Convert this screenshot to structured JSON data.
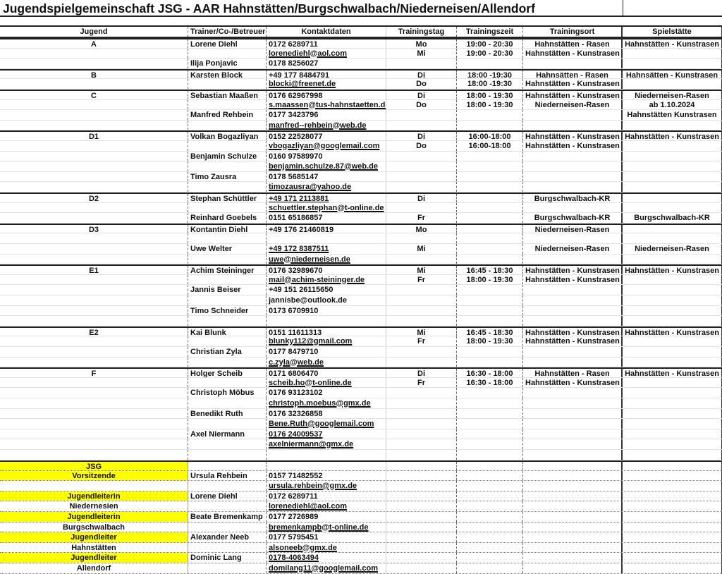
{
  "title": "Jugendspielgemeinschaft JSG - AAR Hahnstätten/Burgschwalbach/Niederneisen/Allendorf",
  "colors": {
    "highlight": "#ffff00",
    "grid": "#222222"
  },
  "columns": [
    "Jugend",
    "Trainer/Co-/Betreuer",
    "Kontaktdaten",
    "Trainingstag",
    "Trainingszeit",
    "Trainingsort",
    "Spielstätte"
  ],
  "teams": [
    {
      "jugend": "A",
      "rows": [
        {
          "trainer": "Lorene Diehl",
          "kontakt": "0172 6289711",
          "tag": "Mo",
          "zeit": "19:00 - 20:30",
          "ort": "Hahnstätten - Rasen",
          "spiel": "Hahnstätten - Kunstrasen"
        },
        {
          "trainer": "",
          "kontakt": "lorenediehl@aol.com",
          "link": true,
          "tag": "Mi",
          "zeit": "19:00 - 20:30",
          "ort": "Hahnstätten - Kunstrasen",
          "spiel": ""
        },
        {
          "trainer": "Ilija Ponjavic",
          "kontakt": "0178 8256027"
        }
      ]
    },
    {
      "jugend": "B",
      "rows": [
        {
          "trainer": "Karsten Block",
          "kontakt": "+49 177 8484791",
          "tag": "Di",
          "zeit": "18:00 -19:30",
          "ort": "Hahnsätten - Rasen",
          "spiel": "Hahnsätten - Kunstrasen"
        },
        {
          "trainer": "",
          "kontakt": "blocki@freenet.de",
          "link": true,
          "tag": "Do",
          "zeit": "18:00 -19:30",
          "ort": "Hahnstätten - Kunstrasen"
        }
      ]
    },
    {
      "jugend": "C",
      "rows": [
        {
          "trainer": "Sebastian Maaßen",
          "kontakt": "0176 62967998",
          "tag": "Di",
          "zeit": "18:00 - 19:30",
          "ort": "Hahnstätten - Kunstrasen",
          "spiel": "Niederneisen-Rasen"
        },
        {
          "trainer": "",
          "kontakt": "s.maassen@tus-hahnstaetten.de",
          "link": true,
          "tag": "Do",
          "zeit": "18:00 - 19:30",
          "ort": "Niederneisen-Rasen",
          "spiel": "ab 1.10.2024"
        },
        {
          "trainer": "Manfred Rehbein",
          "kontakt": "0177 3423796",
          "spiel": "Hahnstätten Kunstrasen"
        },
        {
          "trainer": "",
          "kontakt": "manfred--rehbein@web.de",
          "link": true
        }
      ]
    },
    {
      "jugend": "D1",
      "rows": [
        {
          "trainer": "Volkan Bogazliyan",
          "kontakt": "0152 22528077",
          "tag": "Di",
          "zeit": "16:00-18:00",
          "ort": "Hahnstätten - Kunstrasen",
          "spiel": "Hahnstätten - Kunstrasen"
        },
        {
          "trainer": "",
          "kontakt": "vbogazliyan@googlemail.com",
          "link": true,
          "tag": "Do",
          "zeit": "16:00-18:00",
          "ort": "Hahnstätten - Kunstrasen"
        },
        {
          "trainer": "Benjamin Schulze",
          "kontakt": "0160 97589970"
        },
        {
          "trainer": "",
          "kontakt": "benjamin.schulze.87@web.de",
          "link": true
        },
        {
          "trainer": "Timo Zausra",
          "kontakt": "0178 5685147"
        },
        {
          "trainer": "",
          "kontakt": "timozausra@yahoo.de",
          "link": true
        }
      ]
    },
    {
      "jugend": "D2",
      "rows": [
        {
          "trainer": "Stephan Schüttler",
          "kontakt": "+49 171 2113881",
          "link": true,
          "tag": "Di",
          "ort": "Burgschwalbach-KR"
        },
        {
          "trainer": "",
          "kontakt": "schuettler.stephan@t-online.de",
          "link": true
        },
        {
          "trainer": "Reinhard Goebels",
          "kontakt": "0151 65186857",
          "tag": "Fr",
          "ort": "Burgschwalbach-KR",
          "spiel": "Burgschwalbach-KR"
        }
      ]
    },
    {
      "jugend": "D3",
      "rows": [
        {
          "trainer": "Kontantin Diehl",
          "kontakt": "+49 176 21460819",
          "link": true,
          "tag": "Mo",
          "ort": "Niederneisen-Rasen"
        },
        {},
        {
          "trainer": "Uwe Welter",
          "kontakt": "+49 172 8387511",
          "link": true,
          "tag": "Mi",
          "ort": "Niederneisen-Rasen",
          "spiel": "Niederneisen-Rasen"
        },
        {
          "trainer": "",
          "kontakt": "uwe@niederneisen.de",
          "link": true
        }
      ]
    },
    {
      "jugend": "E1",
      "rows": [
        {
          "trainer": "Achim Steininger",
          "kontakt": "0176 32989670",
          "tag": "Mi",
          "zeit": "16:45 - 18:30",
          "ort": "Hahnstätten - Kunstrasen",
          "spiel": "Hahnstätten - Kunstrasen"
        },
        {
          "trainer": "",
          "kontakt": "mail@achim-steininger.de",
          "link": true,
          "tag": "Fr",
          "zeit": "18:00 - 19:30",
          "ort": "Hahnstätten - Kunstrasen"
        },
        {
          "trainer": "Jannis Beiser",
          "kontakt": "+49 151 26115650"
        },
        {
          "trainer": "",
          "kontakt": "jannisbe@outlook.de"
        },
        {
          "trainer": "Timo Schneider",
          "kontakt": "0173 6709910"
        },
        {}
      ]
    },
    {
      "jugend": "E2",
      "rows": [
        {
          "trainer": "Kai Blunk",
          "kontakt": "0151 11611313",
          "tag": "Mi",
          "zeit": "16:45 - 18:30",
          "ort": "Hahnstätten - Kunstrasen",
          "spiel": "Hahnstätten - Kunstrasen"
        },
        {
          "trainer": "",
          "kontakt": "blunky112@gmail.com",
          "link": true,
          "tag": "Fr",
          "zeit": "18:00 - 19:30",
          "ort": "Hahnstätten - Kunstrasen"
        },
        {
          "trainer": "Christian Zyla",
          "kontakt": "0177 8479710"
        },
        {
          "trainer": "",
          "kontakt": "c.zyla@web.de",
          "link": true
        }
      ]
    },
    {
      "jugend": "F",
      "rows": [
        {
          "trainer": "Holger Scheib",
          "kontakt": "0171 6806470",
          "tag": "Di",
          "zeit": "16:30 - 18:00",
          "ort": "Hahnstätten - Rasen",
          "spiel": "Hahnstätten - Kunstrasen"
        },
        {
          "trainer": "",
          "kontakt": "scheib.ho@t-online.de",
          "link": true,
          "tag": "Fr",
          "zeit": "16:30 - 18:00",
          "ort": "Hahnstätten - Kunstrasen"
        },
        {
          "trainer": "Christoph Möbus",
          "kontakt": "0176 93123102"
        },
        {
          "trainer": "",
          "kontakt": "christoph.moebus@gmx.de",
          "link": true
        },
        {
          "trainer": "Benedikt Ruth",
          "kontakt": "0176 32326858"
        },
        {
          "trainer": "",
          "kontakt": "Bene.Ruth@googlemail.com",
          "link": true
        },
        {
          "trainer": "Axel Niermann",
          "kontakt": "0176 24009537",
          "link": true
        },
        {
          "trainer": "",
          "kontakt": "axelniermann@gmx.de",
          "link": true
        },
        {}
      ]
    }
  ],
  "board": [
    {
      "role": "JSG",
      "highlight": true
    },
    {
      "role": "Vorsitzende",
      "highlight": true,
      "trainer": "Ursula Rehbein",
      "kontakt": "0157 71482552"
    },
    {
      "role": "",
      "kontakt": "ursula.rehbein@gmx.de",
      "link": true
    },
    {
      "role": "Jugendleiterin",
      "highlight": true,
      "trainer": "Lorene Diehl",
      "kontakt": "0172 6289711"
    },
    {
      "role": "Niedernesien",
      "kontakt": "lorenediehl@aol.com",
      "link": true
    },
    {
      "role": "Jugendleiterin",
      "highlight": true,
      "trainer": "Beate Bremenkamp",
      "kontakt": "0177 2726989"
    },
    {
      "role": "Burgschwalbach",
      "kontakt": "bremenkampb@t-online.de",
      "link": true
    },
    {
      "role": "Jugendleiter",
      "highlight": true,
      "trainer": "Alexander Neeb",
      "kontakt": "0177 5795451"
    },
    {
      "role": "Hahnstätten",
      "kontakt": "alsoneeb@gmx.de",
      "link": true
    },
    {
      "role": "Jugendleiter",
      "highlight": true,
      "trainer": "Dominic Lang",
      "kontakt": "0178-4063494",
      "link": true
    },
    {
      "role": "Allendorf",
      "kontakt": "domilang11@googlemail.com",
      "link": true
    }
  ]
}
